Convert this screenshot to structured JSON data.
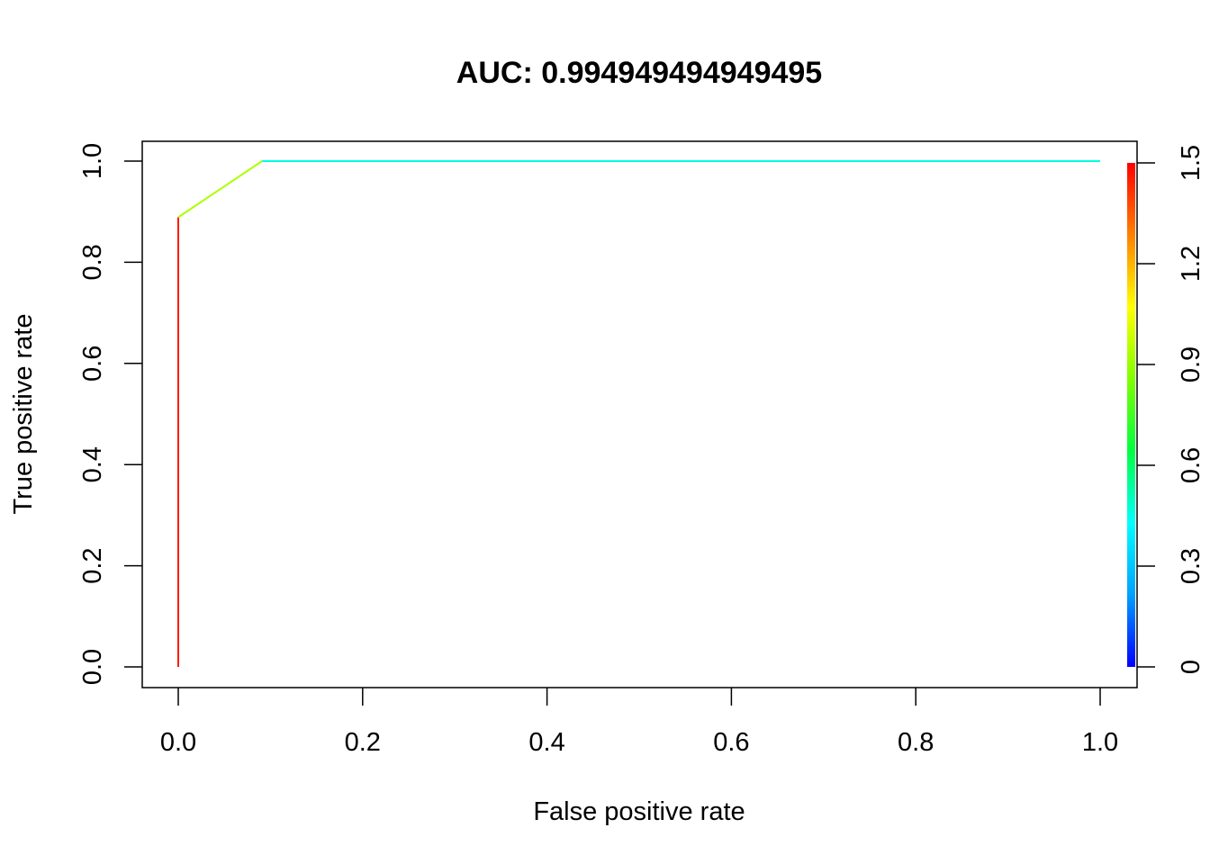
{
  "chart_data": {
    "type": "line",
    "title": "AUC: 0.994949494949495",
    "xlabel": "False positive rate",
    "ylabel": "True positive rate",
    "xlim": [
      0,
      1
    ],
    "ylim": [
      0,
      1
    ],
    "x_ticks": [
      "0.0",
      "0.2",
      "0.4",
      "0.6",
      "0.8",
      "1.0"
    ],
    "y_ticks": [
      "0.0",
      "0.2",
      "0.4",
      "0.6",
      "0.8",
      "1.0"
    ],
    "grid": false,
    "series": [
      {
        "segments": [
          {
            "x": [
              0,
              0
            ],
            "y": [
              0,
              0.889
            ],
            "color": "#FF1A00"
          },
          {
            "x": [
              0,
              0.0909
            ],
            "y": [
              0.889,
              1
            ],
            "color": "#ADFF00"
          },
          {
            "x": [
              0.0909,
              1
            ],
            "y": [
              1,
              1
            ],
            "color": "#00FFE0"
          }
        ]
      }
    ],
    "colorbar": {
      "range": [
        0,
        1.5
      ],
      "ticks": [
        "0",
        "0.3",
        "0.6",
        "0.9",
        "1.2",
        "1.5"
      ],
      "tick_values": [
        0,
        0.3,
        0.6,
        0.9,
        1.2,
        1.5
      ],
      "colors": [
        "#0000FF",
        "#00A0FF",
        "#00FFFF",
        "#00FF40",
        "#80FF00",
        "#FFFF00",
        "#FF8000",
        "#FF0000"
      ]
    }
  }
}
